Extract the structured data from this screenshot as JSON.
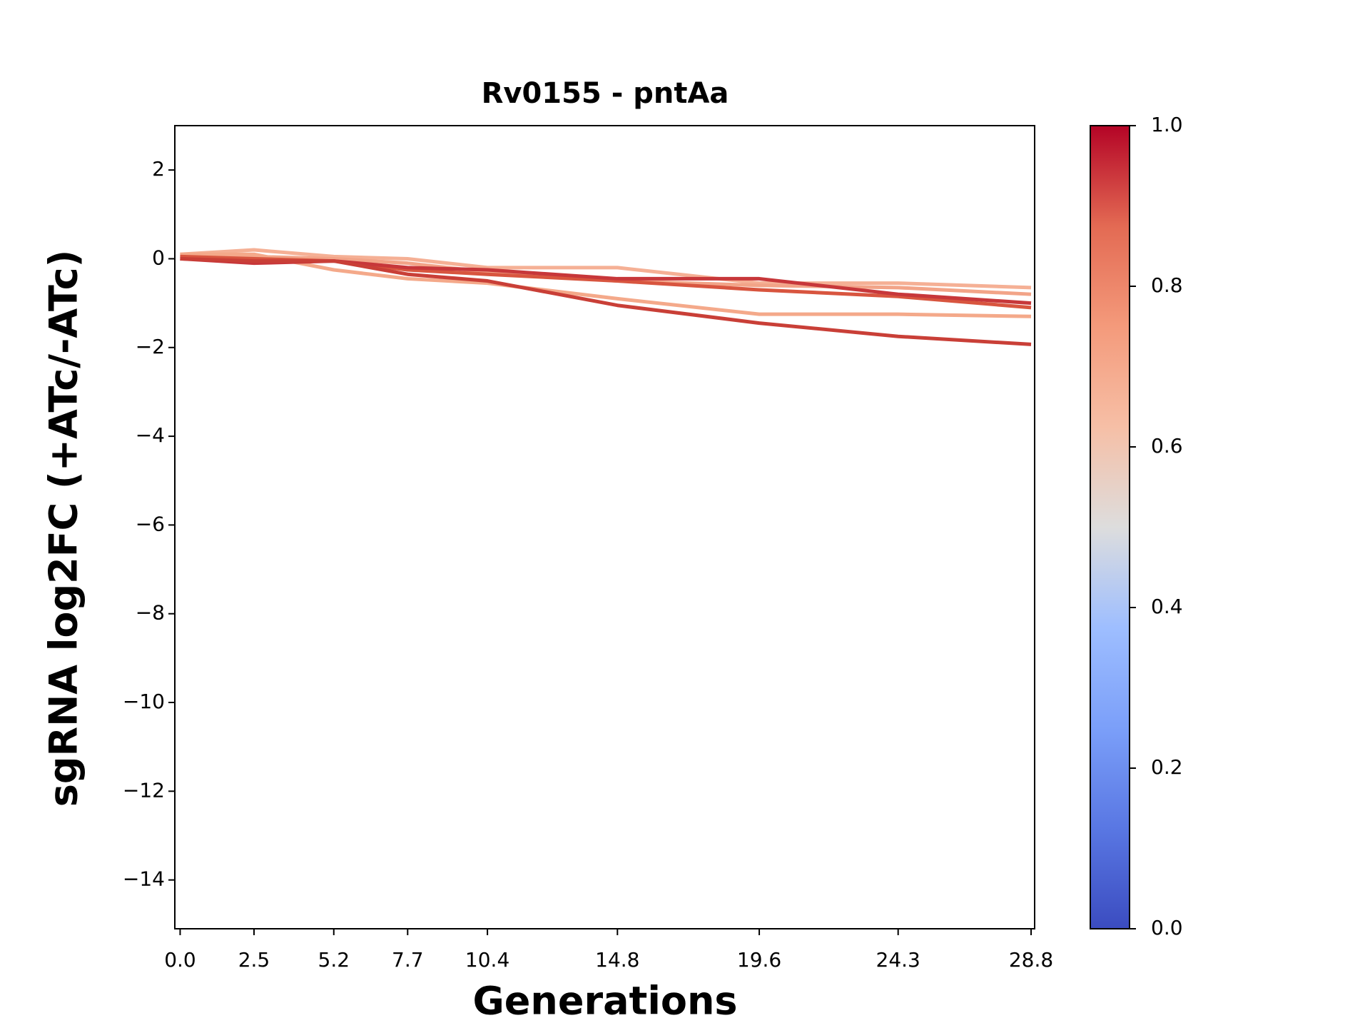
{
  "chart_data": {
    "type": "line",
    "title": "Rv0155 - pntAa",
    "xlabel": "Generations",
    "ylabel": "sgRNA log2FC (+ATc/-ATc)",
    "x": [
      0,
      2.5,
      5.2,
      7.7,
      10.4,
      14.8,
      19.6,
      24.3,
      28.8
    ],
    "series": [
      {
        "color": "#f5b095",
        "values": [
          0.1,
          0.2,
          0.05,
          0.0,
          -0.2,
          -0.2,
          -0.55,
          -0.55,
          -0.65
        ]
      },
      {
        "color": "#f2a488",
        "values": [
          0.05,
          0.05,
          0.0,
          -0.1,
          -0.3,
          -0.5,
          -0.6,
          -0.65,
          -0.8
        ]
      },
      {
        "color": "#f4a98a",
        "values": [
          0.1,
          0.1,
          -0.25,
          -0.45,
          -0.55,
          -0.9,
          -1.25,
          -1.25,
          -1.3
        ]
      },
      {
        "color": "#d8553f",
        "values": [
          0.05,
          0.0,
          -0.05,
          -0.25,
          -0.35,
          -0.5,
          -0.7,
          -0.85,
          -1.1
        ]
      },
      {
        "color": "#c7373a",
        "values": [
          0.0,
          -0.1,
          -0.05,
          -0.2,
          -0.25,
          -0.45,
          -0.45,
          -0.8,
          -1.0
        ]
      },
      {
        "color": "#c93f37",
        "values": [
          0.0,
          -0.05,
          -0.05,
          -0.35,
          -0.5,
          -1.05,
          -1.45,
          -1.75,
          -1.93
        ]
      }
    ],
    "xlim": [
      -0.18,
      28.92
    ],
    "xticks": [
      {
        "value": 0,
        "label": "0.0"
      },
      2.5,
      5.2,
      7.7,
      10.4,
      14.8,
      19.6,
      24.3,
      28.8
    ],
    "ylim": [
      -15.1,
      3
    ],
    "yticks": [
      {
        "value": -14,
        "label": "−14"
      },
      {
        "value": -12,
        "label": "−12"
      },
      {
        "value": -10,
        "label": "−10"
      },
      {
        "value": -8,
        "label": "−8"
      },
      {
        "value": -6,
        "label": "−6"
      },
      {
        "value": -4,
        "label": "−4"
      },
      {
        "value": -2,
        "label": "−2"
      },
      0,
      2
    ],
    "colorbar": {
      "lim": [
        0,
        1
      ],
      "ticks": [
        {
          "value": 0,
          "label": "0.0"
        },
        0.2,
        0.4,
        0.6,
        0.8,
        {
          "value": 1,
          "label": "1.0"
        }
      ]
    }
  }
}
